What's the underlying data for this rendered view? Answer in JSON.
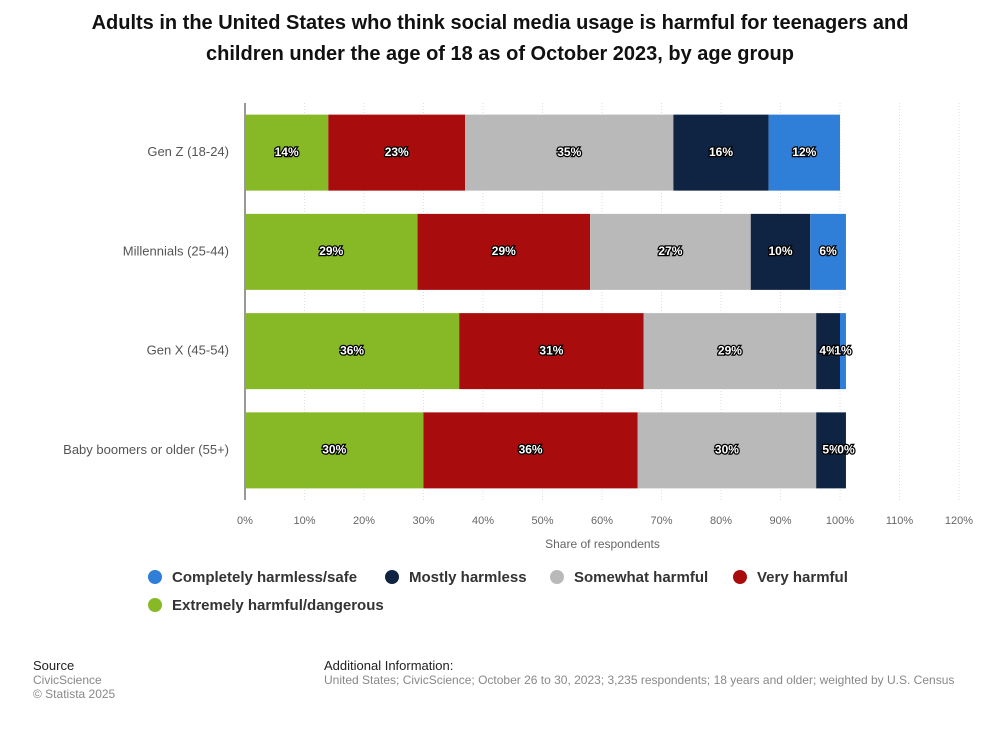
{
  "chart_data": {
    "type": "stacked_bar_horizontal",
    "title": "Adults in the United States who think social media usage is harmful for teenagers and children under the age of 18 as of October 2023, by age group",
    "categories": [
      "Gen Z (18-24)",
      "Millennials (25-44)",
      "Gen X (45-54)",
      "Baby boomers or older (55+)"
    ],
    "series": [
      {
        "name": "Completely harmless/safe",
        "color": "#2f7ed8",
        "values": [
          12,
          6,
          1,
          0
        ],
        "value_labels": [
          "12%",
          "6%",
          "1%",
          "0%"
        ]
      },
      {
        "name": "Mostly harmless",
        "color": "#0f2342",
        "values": [
          16,
          10,
          4,
          5
        ],
        "value_labels": [
          "16%",
          "10%",
          "4%",
          "5%"
        ]
      },
      {
        "name": "Somewhat harmful",
        "color": "#b9b9b9",
        "values": [
          35,
          27,
          29,
          30
        ],
        "value_labels": [
          "35%",
          "27%",
          "29%",
          "30%"
        ]
      },
      {
        "name": "Very harmful",
        "color": "#a80c0c",
        "values": [
          23,
          29,
          31,
          36
        ],
        "value_labels": [
          "23%",
          "29%",
          "31%",
          "36%"
        ]
      },
      {
        "name": "Extremely harmful/dangerous",
        "color": "#87b926",
        "values": [
          14,
          29,
          36,
          30
        ],
        "value_labels": [
          "14%",
          "29%",
          "36%",
          "30%"
        ]
      }
    ],
    "xlim": [
      0,
      120
    ],
    "xticks": [
      {
        "value": 0,
        "label": "0%"
      },
      {
        "value": 10,
        "label": "10%"
      },
      {
        "value": 20,
        "label": "20%"
      },
      {
        "value": 30,
        "label": "30%"
      },
      {
        "value": 40,
        "label": "40%"
      },
      {
        "value": 50,
        "label": "50%"
      },
      {
        "value": 60,
        "label": "60%"
      },
      {
        "value": 70,
        "label": "70%"
      },
      {
        "value": 80,
        "label": "80%"
      },
      {
        "value": 90,
        "label": "90%"
      },
      {
        "value": 100,
        "label": "100%"
      },
      {
        "value": 110,
        "label": "110%"
      },
      {
        "value": 120,
        "label": "120%"
      }
    ],
    "xlabel": "Share of respondents",
    "grid": true,
    "source_heading": "Source",
    "source": "CivicScience",
    "copyright": "© Statista 2025",
    "info_heading": "Additional Information:",
    "info": "United States; CivicScience; October 26 to 30, 2023; 3,235 respondents; 18 years and older; weighted by U.S. Census"
  }
}
